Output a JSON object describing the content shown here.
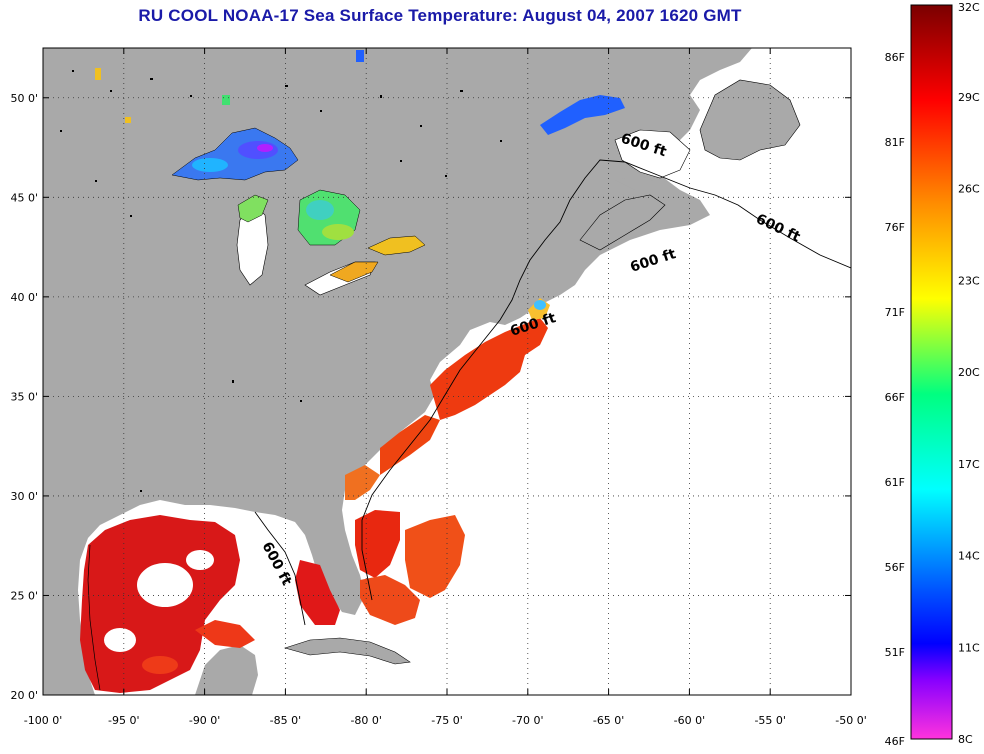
{
  "title": "RU COOL  NOAA-17  Sea Surface Temperature:  August 04, 2007 1620 GMT",
  "map": {
    "lon_range": [
      -100,
      -50
    ],
    "lat_range": [
      20,
      52.5
    ],
    "lon_ticks": [
      "-100 0'",
      "-95 0'",
      "-90 0'",
      "-85 0'",
      "-80 0'",
      "-75 0'",
      "-70 0'",
      "-65 0'",
      "-60 0'",
      "-55 0'",
      "-50 0'"
    ],
    "lat_ticks": [
      "50 0'",
      "45 0'",
      "40 0'",
      "35 0'",
      "30 0'",
      "25 0'",
      "20 0'"
    ],
    "land_color": "#a9a9a9",
    "contour_label": "600 ft",
    "contour_labels": [
      "600 ft",
      "600 ft",
      "600 ft",
      "600 ft",
      "600 ft"
    ]
  },
  "colorbar": {
    "celsius_labels": [
      "32C",
      "29C",
      "26C",
      "23C",
      "20C",
      "17C",
      "14C",
      "11C",
      "8C"
    ],
    "fahrenheit_labels": [
      "86F",
      "81F",
      "76F",
      "71F",
      "66F",
      "61F",
      "56F",
      "51F",
      "46F"
    ],
    "stops": [
      "#7a0000",
      "#ff0000",
      "#ff8c00",
      "#ffff00",
      "#00ff80",
      "#00ffff",
      "#0060ff",
      "#0000ff",
      "#aa00ff",
      "#ff33dd"
    ]
  }
}
